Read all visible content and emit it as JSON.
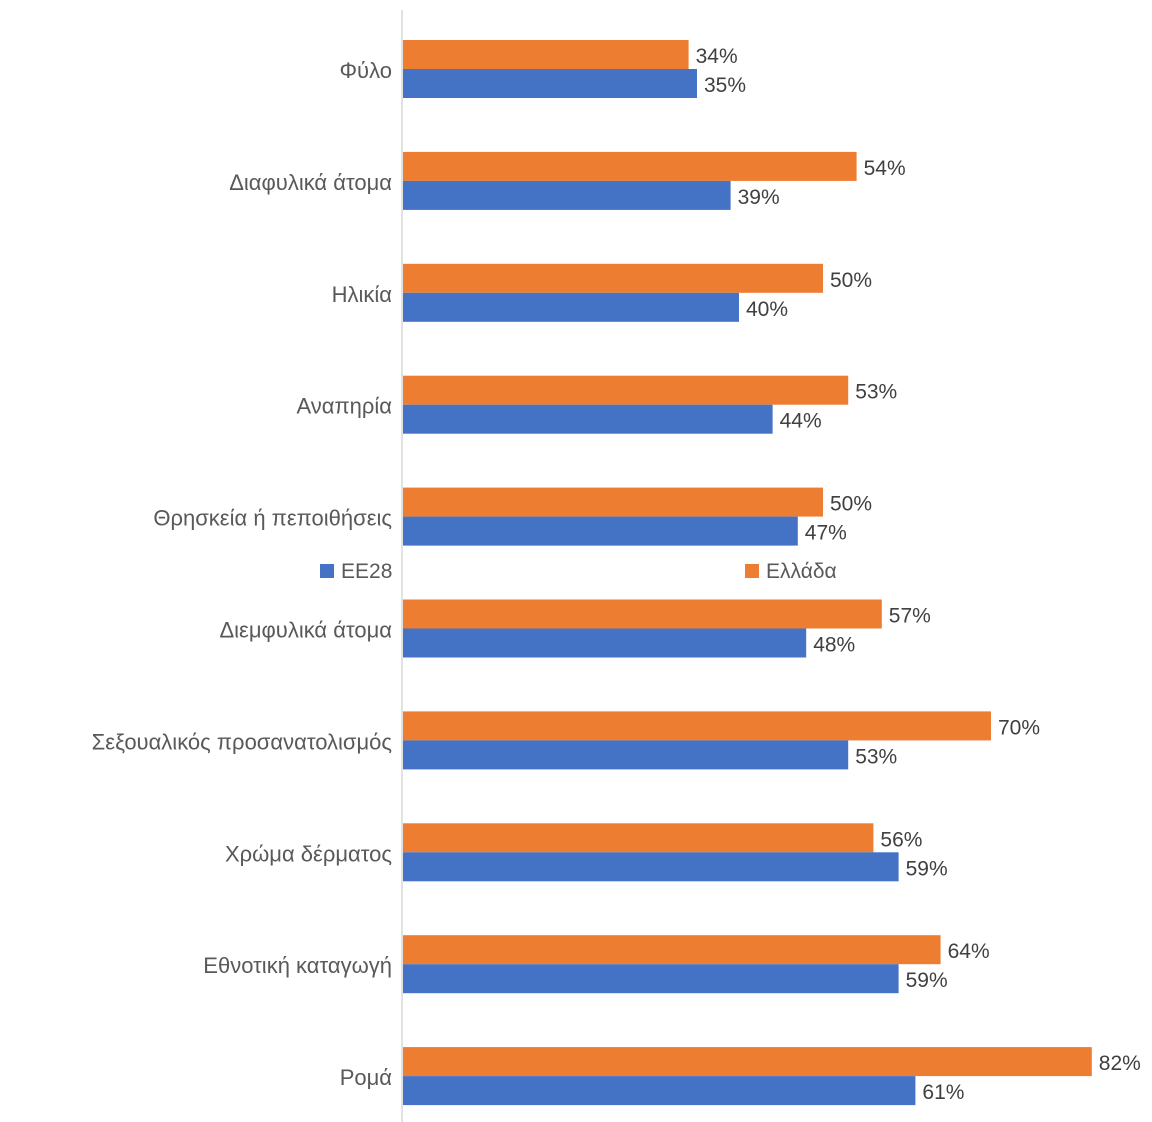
{
  "chart_data": {
    "type": "bar",
    "orientation": "horizontal",
    "categories": [
      "Φύλο",
      "Διαφυλικά άτομα",
      "Ηλικία",
      "Αναπηρία",
      "Θρησκεία ή πεποιθήσεις",
      "Διεμφυλικά άτομα",
      "Σεξουαλικός προσανατολισμός",
      "Χρώμα δέρματος",
      "Εθνοτική καταγωγή",
      "Ρομά"
    ],
    "series": [
      {
        "name": "Ελλάδα",
        "color": "#ED7D31",
        "values": [
          34,
          54,
          50,
          53,
          50,
          57,
          70,
          56,
          64,
          82
        ]
      },
      {
        "name": "ΕΕ28",
        "color": "#4472C4",
        "values": [
          35,
          39,
          40,
          44,
          47,
          48,
          53,
          59,
          59,
          61
        ]
      }
    ],
    "value_suffix": "%",
    "xlim": [
      0,
      90
    ],
    "grid": false,
    "legend": {
      "placement": "middle",
      "entries": [
        "ΕΕ28",
        "Ελλάδα"
      ]
    }
  }
}
